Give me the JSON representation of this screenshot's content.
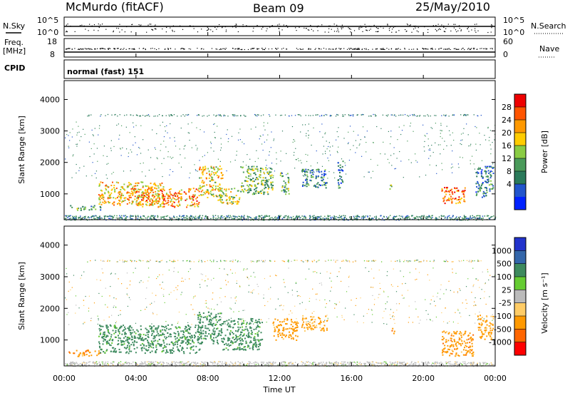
{
  "header": {
    "station": "McMurdo (fitACF)",
    "beam": "Beam 09",
    "date": "25/May/2010"
  },
  "top_panels": {
    "nsky_label": "N.Sky",
    "nsky_ticks": [
      "10^5",
      "10^0"
    ],
    "nsearch_label": "N.Search",
    "nsearch_ticks": [
      "10^5",
      "10^0"
    ],
    "freq_label": "Freq.",
    "freq_unit": "[MHz]",
    "freq_ticks": [
      "18",
      "8"
    ],
    "nave_label": "Nave",
    "nave_ticks": [
      "60",
      "0"
    ],
    "cpid_label": "CPID",
    "cpid_value": "normal (fast) 151"
  },
  "chart_data": [
    {
      "type": "heatmap",
      "name": "power",
      "ylabel": "Slant Range [km]",
      "ylim": [
        180,
        4600
      ],
      "yticks": [
        "4000",
        "3000",
        "2000",
        "1000"
      ],
      "colorbar": {
        "label": "Power [dB]",
        "ticks": [
          "28",
          "24",
          "20",
          "16",
          "12",
          "8",
          "4"
        ],
        "colors": [
          "#0022ff",
          "#2255cc",
          "#2a7a5a",
          "#4a9a5a",
          "#8acc44",
          "#ffcc00",
          "#ff9900",
          "#ff5500",
          "#ee0000"
        ]
      },
      "blobs": [
        {
          "t0": 0.3,
          "t1": 2.0,
          "r0": 500,
          "r1": 650,
          "v": 12
        },
        {
          "t0": 1.9,
          "t1": 5.5,
          "r0": 650,
          "r1": 1400,
          "v": 22
        },
        {
          "t0": 4.0,
          "t1": 7.5,
          "r0": 600,
          "r1": 1200,
          "v": 24
        },
        {
          "t0": 7.5,
          "t1": 8.8,
          "r0": 900,
          "r1": 1900,
          "v": 20
        },
        {
          "t0": 8.5,
          "t1": 9.8,
          "r0": 700,
          "r1": 1200,
          "v": 18
        },
        {
          "t0": 9.8,
          "t1": 11.6,
          "r0": 1000,
          "r1": 1900,
          "v": 14
        },
        {
          "t0": 12.0,
          "t1": 12.5,
          "r0": 1000,
          "r1": 1700,
          "v": 12
        },
        {
          "t0": 13.2,
          "t1": 14.6,
          "r0": 1200,
          "r1": 1800,
          "v": 8
        },
        {
          "t0": 15.2,
          "t1": 15.5,
          "r0": 1200,
          "r1": 2100,
          "v": 8
        },
        {
          "t0": 18.1,
          "t1": 18.3,
          "r0": 1100,
          "r1": 1300,
          "v": 12
        },
        {
          "t0": 21.0,
          "t1": 22.3,
          "r0": 700,
          "r1": 1250,
          "v": 26
        },
        {
          "t0": 22.9,
          "t1": 23.9,
          "r0": 900,
          "r1": 1900,
          "v": 8
        }
      ]
    },
    {
      "type": "heatmap",
      "name": "velocity",
      "ylabel": "Slant Range [km]",
      "ylim": [
        180,
        4600
      ],
      "yticks": [
        "4000",
        "3000",
        "2000",
        "1000"
      ],
      "colorbar": {
        "label": "Velocity [m s⁻¹]",
        "ticks": [
          "1000",
          "500",
          "100",
          "25",
          "-25",
          "-100",
          "-500",
          "-1000"
        ],
        "colors": [
          "#2233cc",
          "#3366aa",
          "#3d8a5e",
          "#66cc33",
          "#bbbbbb",
          "#ffcc66",
          "#ff9900",
          "#ff6600",
          "#ff0000"
        ]
      },
      "blobs": [
        {
          "t0": 0.2,
          "t1": 2.0,
          "r0": 500,
          "r1": 700,
          "v": -300
        },
        {
          "t0": 1.9,
          "t1": 7.6,
          "r0": 600,
          "r1": 1500,
          "v": 250
        },
        {
          "t0": 7.4,
          "t1": 8.8,
          "r0": 900,
          "r1": 1900,
          "v": 250
        },
        {
          "t0": 8.8,
          "t1": 11.0,
          "r0": 700,
          "r1": 1700,
          "v": 250
        },
        {
          "t0": 11.6,
          "t1": 13.0,
          "r0": 1000,
          "r1": 1700,
          "v": -200
        },
        {
          "t0": 13.2,
          "t1": 14.6,
          "r0": 1300,
          "r1": 1800,
          "v": -150
        },
        {
          "t0": 18.2,
          "t1": 18.4,
          "r0": 1200,
          "r1": 1400,
          "v": -600
        },
        {
          "t0": 21.0,
          "t1": 22.8,
          "r0": 500,
          "r1": 1300,
          "v": -300
        },
        {
          "t0": 23.0,
          "t1": 23.9,
          "r0": 1000,
          "r1": 1800,
          "v": -150
        }
      ]
    }
  ],
  "xaxis": {
    "label": "Time UT",
    "ticks": [
      "00:00",
      "04:00",
      "08:00",
      "12:00",
      "16:00",
      "20:00",
      "00:00"
    ]
  }
}
